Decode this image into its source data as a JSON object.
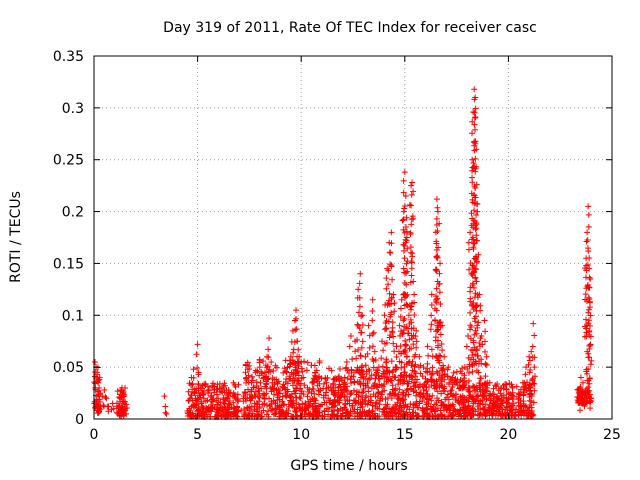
{
  "chart_data": {
    "type": "scatter",
    "title": "Day 319 of 2011, Rate Of TEC Index for receiver casc",
    "xlabel": "GPS time / hours",
    "ylabel": "ROTI / TECUs",
    "xlim": [
      0,
      25
    ],
    "ylim": [
      0,
      0.35
    ],
    "xticks": [
      0,
      5,
      10,
      15,
      20,
      25
    ],
    "xtick_labels": [
      "0",
      "5",
      "10",
      "15",
      "20",
      "25"
    ],
    "yticks": [
      0,
      0.05,
      0.1,
      0.15,
      0.2,
      0.25,
      0.3,
      0.35
    ],
    "ytick_labels": [
      "0",
      "0.05",
      "0.1",
      "0.15",
      "0.2",
      "0.25",
      "0.3",
      "0.35"
    ],
    "grid": true,
    "marker": "+",
    "color": "#ff0000",
    "series": [
      {
        "name": "ROTI",
        "points": [
          [
            0.05,
            0.055
          ],
          [
            0.1,
            0.05
          ],
          [
            0.15,
            0.045
          ],
          [
            0.2,
            0.035
          ],
          [
            0.25,
            0.03
          ],
          [
            0.3,
            0.025
          ],
          [
            0.4,
            0.022
          ],
          [
            0.5,
            0.028
          ],
          [
            0.6,
            0.02
          ],
          [
            0.7,
            0.012
          ],
          [
            0.9,
            0.015
          ],
          [
            0.95,
            0.01
          ],
          [
            1.2,
            0.01
          ],
          [
            1.25,
            0.02
          ],
          [
            1.3,
            0.028
          ],
          [
            1.35,
            0.03
          ],
          [
            1.4,
            0.025
          ],
          [
            1.45,
            0.015
          ],
          [
            1.5,
            0.008
          ],
          [
            1.55,
            0.005
          ],
          [
            3.4,
            0.022
          ],
          [
            3.45,
            0.006
          ],
          [
            3.5,
            0.005
          ],
          [
            4.6,
            0.01
          ],
          [
            4.7,
            0.04
          ],
          [
            4.8,
            0.048
          ],
          [
            4.9,
            0.02
          ],
          [
            5.0,
            0.072
          ],
          [
            5.05,
            0.045
          ],
          [
            5.15,
            0.03
          ],
          [
            5.3,
            0.02
          ],
          [
            5.5,
            0.025
          ],
          [
            5.7,
            0.032
          ],
          [
            5.9,
            0.018
          ],
          [
            6.1,
            0.01
          ],
          [
            6.3,
            0.015
          ],
          [
            6.5,
            0.028
          ],
          [
            6.7,
            0.022
          ],
          [
            6.9,
            0.012
          ],
          [
            7.1,
            0.008
          ],
          [
            7.4,
            0.02
          ],
          [
            7.6,
            0.035
          ],
          [
            7.8,
            0.045
          ],
          [
            8.0,
            0.05
          ],
          [
            8.2,
            0.04
          ],
          [
            8.35,
            0.06
          ],
          [
            8.45,
            0.078
          ],
          [
            8.55,
            0.055
          ],
          [
            8.7,
            0.038
          ],
          [
            8.9,
            0.025
          ],
          [
            9.1,
            0.03
          ],
          [
            9.3,
            0.045
          ],
          [
            9.5,
            0.06
          ],
          [
            9.6,
            0.085
          ],
          [
            9.7,
            0.095
          ],
          [
            9.75,
            0.105
          ],
          [
            9.8,
            0.075
          ],
          [
            9.9,
            0.06
          ],
          [
            10.0,
            0.055
          ],
          [
            10.1,
            0.04
          ],
          [
            10.3,
            0.03
          ],
          [
            10.5,
            0.025
          ],
          [
            10.7,
            0.018
          ],
          [
            10.9,
            0.012
          ],
          [
            11.3,
            0.02
          ],
          [
            11.6,
            0.025
          ],
          [
            11.9,
            0.03
          ],
          [
            12.1,
            0.04
          ],
          [
            12.2,
            0.055
          ],
          [
            12.4,
            0.08
          ],
          [
            12.6,
            0.075
          ],
          [
            12.75,
            0.125
          ],
          [
            12.85,
            0.14
          ],
          [
            12.95,
            0.1
          ],
          [
            13.1,
            0.06
          ],
          [
            13.25,
            0.09
          ],
          [
            13.45,
            0.115
          ],
          [
            13.55,
            0.065
          ],
          [
            13.75,
            0.05
          ],
          [
            13.9,
            0.075
          ],
          [
            14.05,
            0.11
          ],
          [
            14.15,
            0.145
          ],
          [
            14.25,
            0.17
          ],
          [
            14.35,
            0.18
          ],
          [
            14.45,
            0.12
          ],
          [
            14.6,
            0.07
          ],
          [
            14.75,
            0.09
          ],
          [
            14.85,
            0.115
          ],
          [
            14.95,
            0.2
          ],
          [
            15.0,
            0.238
          ],
          [
            15.05,
            0.215
          ],
          [
            15.1,
            0.175
          ],
          [
            15.2,
            0.1
          ],
          [
            15.3,
            0.225
          ],
          [
            15.35,
            0.228
          ],
          [
            15.45,
            0.12
          ],
          [
            15.55,
            0.085
          ],
          [
            15.7,
            0.06
          ],
          [
            15.9,
            0.05
          ],
          [
            16.1,
            0.07
          ],
          [
            16.3,
            0.12
          ],
          [
            16.5,
            0.18
          ],
          [
            16.55,
            0.212
          ],
          [
            16.6,
            0.2
          ],
          [
            16.7,
            0.15
          ],
          [
            16.8,
            0.09
          ],
          [
            16.9,
            0.06
          ],
          [
            17.1,
            0.05
          ],
          [
            17.3,
            0.04
          ],
          [
            17.5,
            0.035
          ],
          [
            17.7,
            0.03
          ],
          [
            17.9,
            0.05
          ],
          [
            18.05,
            0.08
          ],
          [
            18.15,
            0.18
          ],
          [
            18.25,
            0.25
          ],
          [
            18.3,
            0.296
          ],
          [
            18.35,
            0.318
          ],
          [
            18.4,
            0.31
          ],
          [
            18.45,
            0.26
          ],
          [
            18.5,
            0.2
          ],
          [
            18.6,
            0.12
          ],
          [
            18.7,
            0.08
          ],
          [
            18.85,
            0.095
          ],
          [
            18.95,
            0.06
          ],
          [
            19.1,
            0.035
          ],
          [
            19.3,
            0.02
          ],
          [
            19.6,
            0.015
          ],
          [
            19.9,
            0.02
          ],
          [
            20.2,
            0.03
          ],
          [
            20.5,
            0.025
          ],
          [
            20.7,
            0.035
          ],
          [
            20.85,
            0.05
          ],
          [
            21.0,
            0.06
          ],
          [
            21.1,
            0.065
          ],
          [
            21.2,
            0.092
          ],
          [
            21.25,
            0.05
          ],
          [
            23.4,
            0.025
          ],
          [
            23.5,
            0.04
          ],
          [
            23.6,
            0.035
          ],
          [
            23.7,
            0.02
          ],
          [
            23.75,
            0.155
          ],
          [
            23.8,
            0.18
          ],
          [
            23.85,
            0.205
          ],
          [
            23.9,
            0.145
          ],
          [
            23.95,
            0.135
          ],
          [
            24.0,
            0.02
          ]
        ],
        "dense_bands": [
          {
            "x": [
              0.0,
              0.3
            ],
            "y": [
              0.005,
              0.05
            ]
          },
          {
            "x": [
              1.1,
              1.6
            ],
            "y": [
              0.003,
              0.03
            ]
          },
          {
            "x": [
              4.5,
              7.0
            ],
            "y": [
              0.002,
              0.035
            ]
          },
          {
            "x": [
              7.2,
              11.0
            ],
            "y": [
              0.002,
              0.06
            ]
          },
          {
            "x": [
              11.0,
              18.0
            ],
            "y": [
              0.002,
              0.05
            ]
          },
          {
            "x": [
              18.0,
              21.2
            ],
            "y": [
              0.003,
              0.035
            ]
          },
          {
            "x": [
              23.3,
              24.0
            ],
            "y": [
              0.015,
              0.03
            ]
          }
        ]
      }
    ]
  }
}
